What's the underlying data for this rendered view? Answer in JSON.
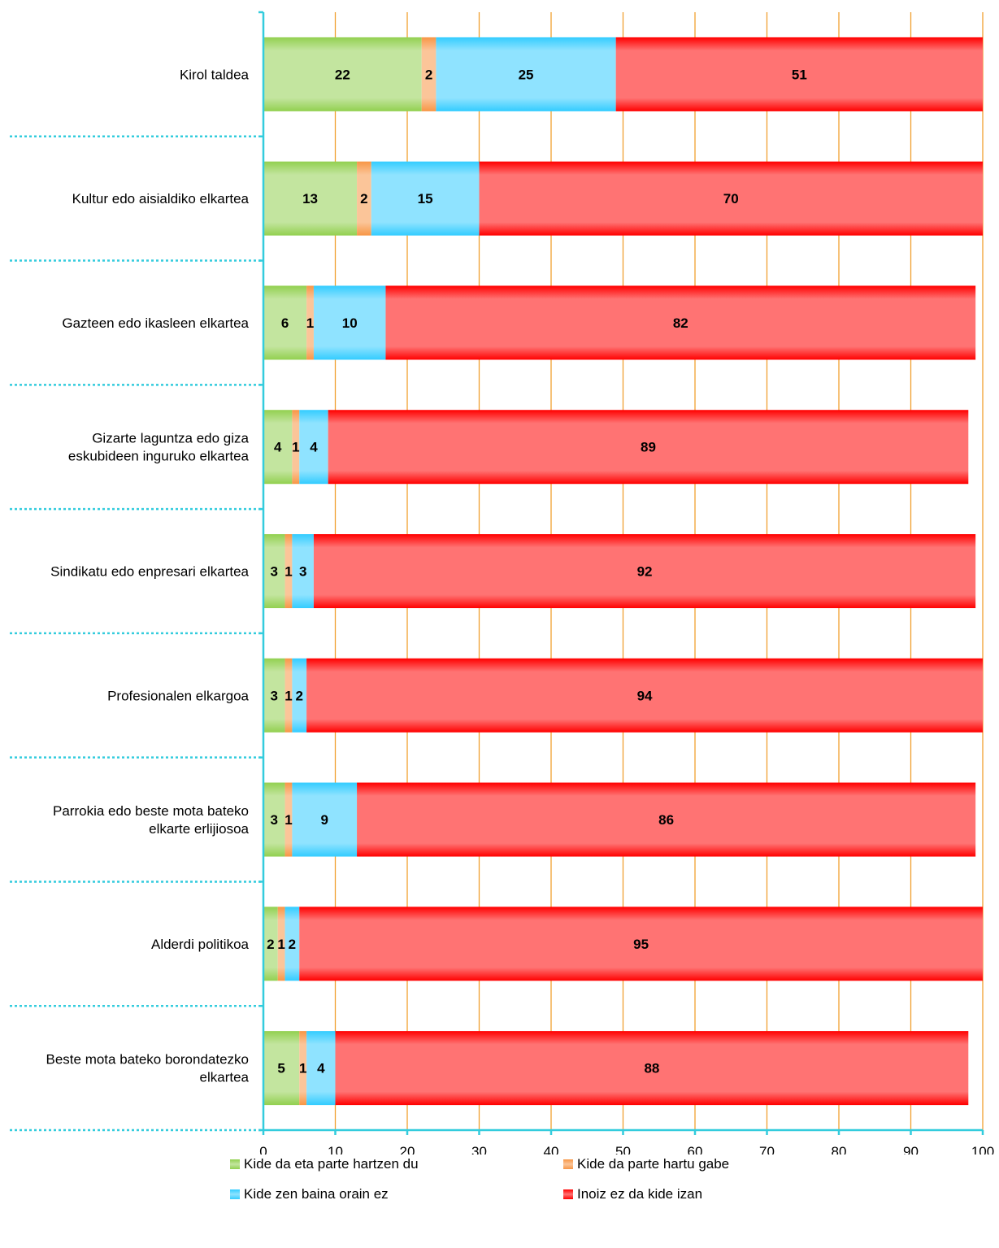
{
  "chart_data": {
    "type": "bar",
    "orientation": "horizontal",
    "stacked": true,
    "categories": [
      [
        "Kirol taldea"
      ],
      [
        "Kultur edo aisialdiko elkartea"
      ],
      [
        "Gazteen edo ikasleen elkartea"
      ],
      [
        "Gizarte laguntza edo giza",
        "eskubideen inguruko elkartea"
      ],
      [
        "Sindikatu edo enpresari elkartea"
      ],
      [
        "Profesionalen elkargoa"
      ],
      [
        "Parrokia edo beste mota bateko",
        "elkarte erlijiosoa"
      ],
      [
        "Alderdi politikoa"
      ],
      [
        "Beste mota bateko borondatezko",
        "elkartea"
      ]
    ],
    "series": [
      {
        "name": "Kide da eta parte hartzen du",
        "color": "#92d050",
        "values": [
          22,
          13,
          6,
          4,
          3,
          3,
          3,
          2,
          5
        ]
      },
      {
        "name": "Kide da parte hartu gabe",
        "color": "#f79646",
        "values": [
          2,
          2,
          1,
          1,
          1,
          1,
          1,
          1,
          1
        ]
      },
      {
        "name": "Kide zen baina orain ez",
        "color": "#33ccff",
        "values": [
          25,
          15,
          10,
          4,
          3,
          2,
          9,
          2,
          4
        ]
      },
      {
        "name": "Inoiz ez da kide izan",
        "color": "#ff0000",
        "values": [
          51,
          70,
          82,
          89,
          92,
          94,
          86,
          95,
          88
        ]
      }
    ],
    "xlim": [
      0,
      100
    ],
    "xticks": [
      0,
      10,
      20,
      30,
      40,
      50,
      60,
      70,
      80,
      90,
      100
    ],
    "grid": true,
    "legend_position": "bottom"
  }
}
